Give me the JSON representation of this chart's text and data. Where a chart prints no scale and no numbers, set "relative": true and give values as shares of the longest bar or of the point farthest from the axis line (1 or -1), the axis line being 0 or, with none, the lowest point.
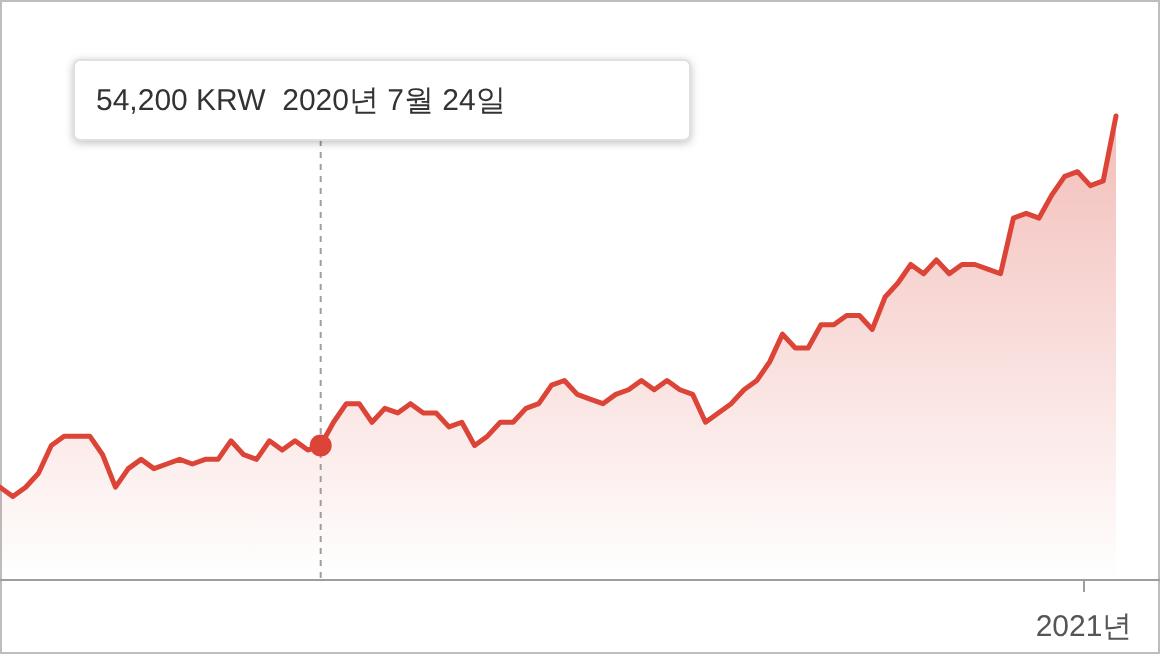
{
  "chart_data": {
    "type": "area",
    "relative": true,
    "categories": [
      null,
      null,
      null,
      null,
      null,
      null,
      null,
      null,
      null,
      null,
      null,
      null,
      null,
      null,
      null,
      null,
      null,
      null,
      null,
      null,
      null,
      null,
      null,
      null,
      null,
      null,
      null,
      null,
      null,
      null,
      null,
      null,
      null,
      null,
      null,
      null,
      null,
      null,
      null,
      null,
      null,
      null,
      null,
      null,
      null,
      null,
      null,
      null,
      null,
      null,
      null,
      null,
      null,
      null,
      null,
      null,
      null,
      null,
      null,
      null,
      null,
      null,
      null,
      null,
      null,
      null,
      null,
      null,
      null,
      null,
      null,
      null,
      null,
      null,
      null,
      null,
      null,
      null,
      null,
      null,
      null,
      null,
      null,
      null,
      null,
      null,
      null,
      null
    ],
    "series": [
      {
        "color": "#db4437",
        "values": [
          0.2,
          0.18,
          0.2,
          0.23,
          0.29,
          0.31,
          0.31,
          0.31,
          0.27,
          0.2,
          0.24,
          0.26,
          0.24,
          0.25,
          0.26,
          0.25,
          0.26,
          0.26,
          0.3,
          0.27,
          0.26,
          0.3,
          0.28,
          0.3,
          0.28,
          0.29,
          0.34,
          0.38,
          0.38,
          0.34,
          0.37,
          0.36,
          0.38,
          0.36,
          0.36,
          0.33,
          0.34,
          0.29,
          0.31,
          0.34,
          0.34,
          0.37,
          0.38,
          0.42,
          0.43,
          0.4,
          0.39,
          0.38,
          0.4,
          0.41,
          0.43,
          0.41,
          0.43,
          0.41,
          0.4,
          0.34,
          0.36,
          0.38,
          0.41,
          0.43,
          0.47,
          0.53,
          0.5,
          0.5,
          0.55,
          0.55,
          0.57,
          0.57,
          0.54,
          0.61,
          0.64,
          0.68,
          0.66,
          0.69,
          0.66,
          0.68,
          0.68,
          0.67,
          0.66,
          0.78,
          0.79,
          0.78,
          0.83,
          0.87,
          0.88,
          0.85,
          0.86,
          1
        ]
      }
    ],
    "annotations": [
      "54,200 KRW  2020년 7월 24일",
      "2021년"
    ]
  }
}
